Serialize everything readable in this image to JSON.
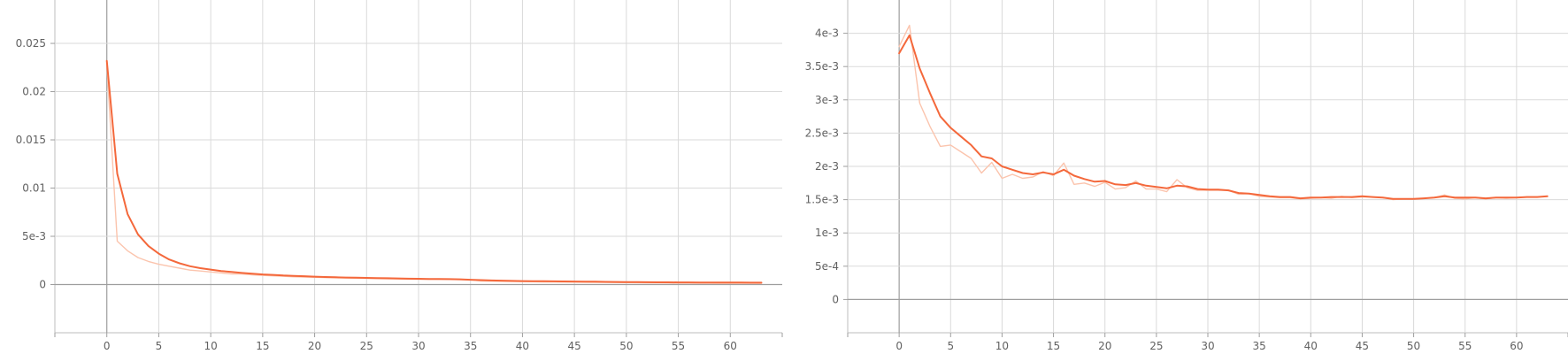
{
  "chart_data": [
    {
      "type": "line",
      "title": "",
      "xlabel": "",
      "ylabel": "",
      "xlim": [
        -5,
        65
      ],
      "ylim": [
        -0.005,
        0.0295
      ],
      "x_ticks": [
        0,
        5,
        10,
        15,
        20,
        25,
        30,
        35,
        40,
        45,
        50,
        55,
        60
      ],
      "y_ticks": [
        0,
        0.005,
        0.01,
        0.015,
        0.02,
        0.025
      ],
      "y_tick_labels": [
        "0",
        "5e-3",
        "0.01",
        "0.015",
        "0.02",
        "0.025"
      ],
      "grid": true,
      "series": [
        {
          "role": "raw",
          "color": "#fbc4ad",
          "x": [
            0,
            1,
            2,
            3,
            4,
            5,
            6,
            7,
            8,
            9,
            10,
            11,
            12,
            13,
            14,
            15,
            16,
            17,
            18,
            19,
            20,
            21,
            22,
            23,
            24,
            25,
            26,
            27,
            28,
            29,
            30,
            31,
            32,
            33,
            34,
            35,
            36,
            37,
            38,
            39,
            40,
            41,
            42,
            43,
            44,
            45,
            46,
            47,
            48,
            49,
            50,
            51,
            52,
            53,
            54,
            55,
            56,
            57,
            58,
            59,
            60,
            61,
            62,
            63
          ],
          "values": [
            0.0229,
            0.0045,
            0.0035,
            0.0028,
            0.0024,
            0.0021,
            0.0019,
            0.0017,
            0.0015,
            0.0014,
            0.0013,
            0.0012,
            0.0011,
            0.0011,
            0.001,
            0.00095,
            0.0009,
            0.00085,
            0.0008,
            0.00078,
            0.00075,
            0.00072,
            0.0007,
            0.00068,
            0.00066,
            0.00064,
            0.00062,
            0.0006,
            0.00058,
            0.00056,
            0.00055,
            0.00054,
            0.00053,
            0.00052,
            0.00051,
            0.0005,
            0.00037,
            0.00035,
            0.00033,
            0.00031,
            0.0003,
            0.00029,
            0.00028,
            0.00027,
            0.00026,
            0.00025,
            0.00024,
            0.00023,
            0.00022,
            0.00021,
            0.0002,
            0.00019,
            0.00018,
            0.00018,
            0.00017,
            0.00016,
            0.00016,
            0.00015,
            0.00015,
            0.00014,
            0.00014,
            0.00013,
            0.00013,
            0.00012
          ]
        },
        {
          "role": "smoothed",
          "color": "#f4683b",
          "x": [
            0,
            1,
            2,
            3,
            4,
            5,
            6,
            7,
            8,
            9,
            10,
            11,
            12,
            13,
            14,
            15,
            16,
            17,
            18,
            19,
            20,
            21,
            22,
            23,
            24,
            25,
            26,
            27,
            28,
            29,
            30,
            31,
            32,
            33,
            34,
            35,
            36,
            37,
            38,
            39,
            40,
            41,
            42,
            43,
            44,
            45,
            46,
            47,
            48,
            49,
            50,
            51,
            52,
            53,
            54,
            55,
            56,
            57,
            58,
            59,
            60,
            61,
            62,
            63
          ],
          "values": [
            0.0232,
            0.0115,
            0.0073,
            0.0052,
            0.004,
            0.0032,
            0.0026,
            0.0022,
            0.0019,
            0.0017,
            0.00155,
            0.0014,
            0.0013,
            0.0012,
            0.00112,
            0.00105,
            0.001,
            0.00094,
            0.0009,
            0.00086,
            0.00082,
            0.00078,
            0.00075,
            0.00073,
            0.00071,
            0.00069,
            0.00067,
            0.00065,
            0.00063,
            0.00061,
            0.0006,
            0.00058,
            0.00057,
            0.00056,
            0.00054,
            0.0005,
            0.00046,
            0.00042,
            0.0004,
            0.00038,
            0.00036,
            0.00035,
            0.00034,
            0.00033,
            0.00032,
            0.00031,
            0.0003,
            0.00029,
            0.00028,
            0.00027,
            0.00026,
            0.00025,
            0.00024,
            0.00023,
            0.00023,
            0.00022,
            0.00022,
            0.00021,
            0.00021,
            0.0002,
            0.0002,
            0.0002,
            0.00019,
            0.00019
          ]
        }
      ]
    },
    {
      "type": "line",
      "title": "",
      "xlabel": "",
      "ylabel": "",
      "xlim": [
        -5,
        65
      ],
      "ylim": [
        -0.0005,
        0.0045
      ],
      "x_ticks": [
        0,
        5,
        10,
        15,
        20,
        25,
        30,
        35,
        40,
        45,
        50,
        55,
        60
      ],
      "y_ticks": [
        0,
        0.0005,
        0.001,
        0.0015,
        0.002,
        0.0025,
        0.003,
        0.0035,
        0.004
      ],
      "y_tick_labels": [
        "0",
        "5e-4",
        "1e-3",
        "1.5e-3",
        "2e-3",
        "2.5e-3",
        "3e-3",
        "3.5e-3",
        "4e-3"
      ],
      "grid": true,
      "series": [
        {
          "role": "raw",
          "color": "#fbc4ad",
          "x": [
            0,
            1,
            2,
            3,
            4,
            5,
            6,
            7,
            8,
            9,
            10,
            11,
            12,
            13,
            14,
            15,
            16,
            17,
            18,
            19,
            20,
            21,
            22,
            23,
            24,
            25,
            26,
            27,
            28,
            29,
            30,
            31,
            32,
            33,
            34,
            35,
            36,
            37,
            38,
            39,
            40,
            41,
            42,
            43,
            44,
            45,
            46,
            47,
            48,
            49,
            50,
            51,
            52,
            53,
            54,
            55,
            56,
            57,
            58,
            59,
            60,
            61,
            62,
            63
          ],
          "values": [
            0.0038,
            0.00412,
            0.00295,
            0.0026,
            0.0023,
            0.00232,
            0.00222,
            0.00212,
            0.0019,
            0.00206,
            0.00182,
            0.00188,
            0.00182,
            0.00184,
            0.00192,
            0.00186,
            0.00205,
            0.00173,
            0.00175,
            0.0017,
            0.00176,
            0.00166,
            0.00168,
            0.00178,
            0.00166,
            0.00166,
            0.00162,
            0.0018,
            0.00168,
            0.00164,
            0.00164,
            0.00164,
            0.00164,
            0.00158,
            0.00159,
            0.00155,
            0.00154,
            0.00153,
            0.00153,
            0.00151,
            0.00152,
            0.00153,
            0.00152,
            0.00155,
            0.00153,
            0.00154,
            0.00154,
            0.00153,
            0.0015,
            0.00151,
            0.00151,
            0.00152,
            0.00153,
            0.00157,
            0.00152,
            0.00151,
            0.00153,
            0.00151,
            0.00153,
            0.00152,
            0.00153,
            0.00154,
            0.00154,
            0.00155
          ]
        },
        {
          "role": "smoothed",
          "color": "#f4683b",
          "x": [
            0,
            1,
            2,
            3,
            4,
            5,
            6,
            7,
            8,
            9,
            10,
            11,
            12,
            13,
            14,
            15,
            16,
            17,
            18,
            19,
            20,
            21,
            22,
            23,
            24,
            25,
            26,
            27,
            28,
            29,
            30,
            31,
            32,
            33,
            34,
            35,
            36,
            37,
            38,
            39,
            40,
            41,
            42,
            43,
            44,
            45,
            46,
            47,
            48,
            49,
            50,
            51,
            52,
            53,
            54,
            55,
            56,
            57,
            58,
            59,
            60,
            61,
            62,
            63
          ],
          "values": [
            0.0037,
            0.00397,
            0.00347,
            0.0031,
            0.00275,
            0.00258,
            0.00245,
            0.00232,
            0.00215,
            0.00212,
            0.002,
            0.00195,
            0.0019,
            0.00188,
            0.00191,
            0.00188,
            0.00195,
            0.00186,
            0.00181,
            0.00177,
            0.00178,
            0.00173,
            0.00172,
            0.00175,
            0.00171,
            0.00169,
            0.00167,
            0.00171,
            0.0017,
            0.00166,
            0.00165,
            0.00165,
            0.00164,
            0.0016,
            0.00159,
            0.00157,
            0.00155,
            0.00154,
            0.00154,
            0.00152,
            0.00153,
            0.00153,
            0.00154,
            0.00154,
            0.00154,
            0.00155,
            0.00154,
            0.00153,
            0.00151,
            0.00151,
            0.00151,
            0.00152,
            0.00153,
            0.00155,
            0.00153,
            0.00153,
            0.00153,
            0.00152,
            0.00153,
            0.00153,
            0.00153,
            0.00154,
            0.00154,
            0.00155
          ]
        }
      ]
    }
  ]
}
